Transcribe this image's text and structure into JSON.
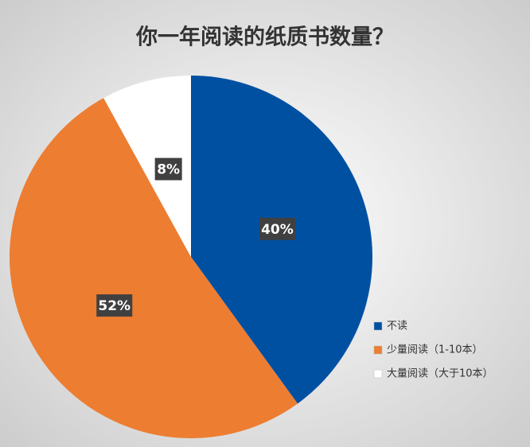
{
  "chart_data": {
    "type": "pie",
    "title": "你一年阅读的纸质书数量？",
    "categories": [
      "不读",
      "少量阅读（1-10本）",
      "大量阅读（大于10本）"
    ],
    "values": [
      40,
      52,
      8
    ],
    "value_labels": [
      "40%",
      "52%",
      "8%"
    ],
    "colors": [
      "#0050a2",
      "#ed7d31",
      "#ffffff"
    ],
    "legend": "bottom-right"
  }
}
